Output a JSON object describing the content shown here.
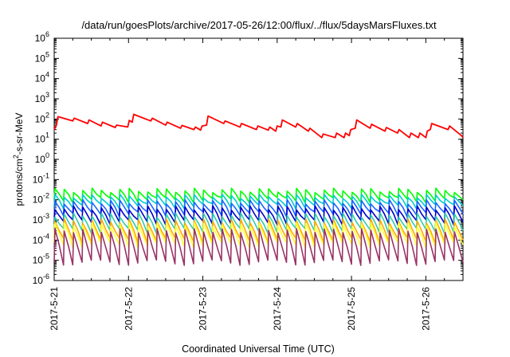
{
  "chart_data": {
    "type": "line",
    "title": "/data/run/goesPlots/archive/2017-05-26/12:00/flux/../flux/5daysMarsFluxes.txt",
    "xlabel": "Coordinated Universal Time (UTC)",
    "ylabel": {
      "prefix": "protons/cm",
      "sup": "2",
      "suffix": "-s-sr-MeV"
    },
    "yscale": "log",
    "ylim": [
      1e-06,
      1000000.0
    ],
    "xlim": [
      0,
      5.5
    ],
    "grid": false,
    "legend": "none",
    "x_ticks": [
      {
        "x": 0,
        "label": "2017-5-21"
      },
      {
        "x": 1,
        "label": "2017-5-22"
      },
      {
        "x": 2,
        "label": "2017-5-23"
      },
      {
        "x": 3,
        "label": "2017-5-24"
      },
      {
        "x": 4,
        "label": "2017-5-25"
      },
      {
        "x": 5,
        "label": "2017-5-26"
      }
    ],
    "y_ticks": [
      {
        "exp": "6",
        "value": 1000000.0
      },
      {
        "exp": "5",
        "value": 100000.0
      },
      {
        "exp": "4",
        "value": 10000.0
      },
      {
        "exp": "3",
        "value": 1000.0
      },
      {
        "exp": "2",
        "value": 100.0
      },
      {
        "exp": "1",
        "value": 10.0
      },
      {
        "exp": "0",
        "value": 1.0
      },
      {
        "exp": "-1",
        "value": 0.1
      },
      {
        "exp": "-2",
        "value": 0.01
      },
      {
        "exp": "-3",
        "value": 0.001
      },
      {
        "exp": "-4",
        "value": 0.0001
      },
      {
        "exp": "-5",
        "value": 1e-05
      },
      {
        "exp": "-6",
        "value": 1e-06
      }
    ],
    "series": [
      {
        "color": "#ff0000",
        "x": [
          0,
          0.03,
          0.05,
          0.25,
          0.27,
          0.45,
          0.47,
          0.63,
          0.65,
          0.82,
          0.84,
          0.99,
          1.01,
          1.05,
          1.07,
          1.3,
          1.32,
          1.5,
          1.52,
          1.7,
          1.72,
          1.88,
          1.9,
          1.97,
          1.99,
          2.05,
          2.07,
          2.28,
          2.3,
          2.5,
          2.52,
          2.72,
          2.74,
          2.88,
          2.9,
          2.98,
          3.0,
          3.05,
          3.07,
          3.25,
          3.27,
          3.42,
          3.44,
          3.6,
          3.62,
          3.78,
          3.8,
          3.9,
          3.92,
          3.97,
          3.99,
          4.05,
          4.07,
          4.25,
          4.27,
          4.45,
          4.47,
          4.62,
          4.64,
          4.78,
          4.8,
          4.9,
          4.92,
          5.0,
          5.02,
          5.06,
          5.08,
          5.3,
          5.32,
          5.48,
          5.5
        ],
        "y": [
          30,
          50,
          130,
          80,
          110,
          60,
          90,
          45,
          70,
          38,
          50,
          40,
          85,
          70,
          170,
          80,
          110,
          50,
          70,
          35,
          48,
          30,
          40,
          28,
          45,
          50,
          140,
          60,
          80,
          40,
          60,
          30,
          45,
          28,
          40,
          25,
          45,
          40,
          90,
          40,
          60,
          25,
          35,
          12,
          18,
          12,
          20,
          12,
          20,
          15,
          30,
          35,
          90,
          35,
          55,
          25,
          38,
          20,
          30,
          12,
          20,
          12,
          20,
          12,
          25,
          30,
          60,
          30,
          45,
          15,
          12
        ]
      },
      {
        "color": "#00ff00",
        "base": 0.03,
        "min": 0.01,
        "teeth": 44
      },
      {
        "color": "#00cccc",
        "base": 0.015,
        "min": 0.005,
        "teeth": 44
      },
      {
        "color": "#1a66ff",
        "base": 0.008,
        "min": 0.002,
        "teeth": 44
      },
      {
        "color": "#0000cc",
        "base": 0.004,
        "min": 0.0008,
        "teeth": 44
      },
      {
        "color": "#33ccaa",
        "base": 0.0018,
        "min": 0.0003,
        "teeth": 44
      },
      {
        "color": "#ffaa00",
        "base": 0.0009,
        "min": 0.0001,
        "teeth": 44
      },
      {
        "color": "#ffff33",
        "base": 0.0006,
        "min": 6e-05,
        "teeth": 44
      },
      {
        "color": "#993366",
        "base": 0.0003,
        "min": 8e-06,
        "teeth": 44
      }
    ]
  }
}
